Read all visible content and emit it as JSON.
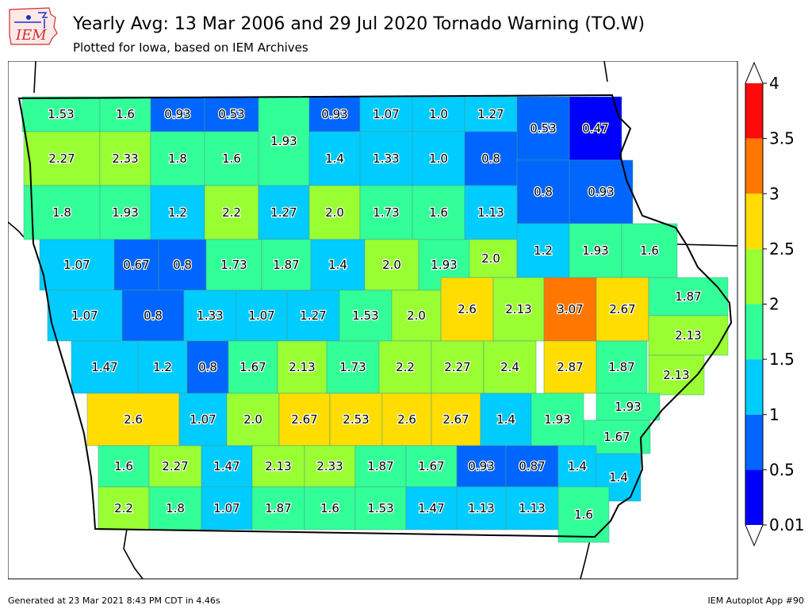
{
  "header": {
    "title": "Yearly Avg: 13 Mar 2006 and 29 Jul 2020 Tornado Warning (TO.W)",
    "subtitle": "Plotted for Iowa, based on IEM Archives",
    "logo_text": "IEM"
  },
  "footer": {
    "generated": "Generated at 23 Mar 2021 8:43 PM CDT in 4.46s",
    "app": "IEM Autoplot App #90"
  },
  "colorbar": {
    "ticks": [
      "0.01",
      "0.5",
      "1",
      "1.5",
      "2",
      "2.5",
      "3",
      "3.5",
      "4"
    ],
    "bins": [
      {
        "min": 0.01,
        "max": 0.5,
        "color": "#0000ff"
      },
      {
        "min": 0.5,
        "max": 1.0,
        "color": "#0066ff"
      },
      {
        "min": 1.0,
        "max": 1.5,
        "color": "#00ccff"
      },
      {
        "min": 1.5,
        "max": 2.0,
        "color": "#33ff99"
      },
      {
        "min": 2.0,
        "max": 2.5,
        "color": "#99ff33"
      },
      {
        "min": 2.5,
        "max": 3.0,
        "color": "#ffdd00"
      },
      {
        "min": 3.0,
        "max": 3.5,
        "color": "#ff7700"
      },
      {
        "min": 3.5,
        "max": 4.0,
        "color": "#ff0a0a"
      }
    ]
  },
  "map": {
    "region": "Iowa",
    "counties": [
      {
        "value": "1.53"
      },
      {
        "value": "1.6"
      },
      {
        "value": "0.93"
      },
      {
        "value": "0.53"
      },
      {
        "value": "1.93"
      },
      {
        "value": "0.93"
      },
      {
        "value": "1.07"
      },
      {
        "value": "1.0"
      },
      {
        "value": "1.27"
      },
      {
        "value": "0.53"
      },
      {
        "value": "0.47"
      },
      {
        "value": "2.27"
      },
      {
        "value": "2.33"
      },
      {
        "value": "1.8"
      },
      {
        "value": "1.6"
      },
      {
        "value": "1.4"
      },
      {
        "value": "1.33"
      },
      {
        "value": "1.0"
      },
      {
        "value": "0.8"
      },
      {
        "value": "0.8"
      },
      {
        "value": "0.93"
      },
      {
        "value": "1.8"
      },
      {
        "value": "1.93"
      },
      {
        "value": "1.2"
      },
      {
        "value": "2.2"
      },
      {
        "value": "1.27"
      },
      {
        "value": "2.0"
      },
      {
        "value": "1.73"
      },
      {
        "value": "1.6"
      },
      {
        "value": "1.13"
      },
      {
        "value": "2.0"
      },
      {
        "value": "1.2"
      },
      {
        "value": "1.93"
      },
      {
        "value": "1.6"
      },
      {
        "value": "1.07"
      },
      {
        "value": "0.67"
      },
      {
        "value": "0.8"
      },
      {
        "value": "1.73"
      },
      {
        "value": "1.87"
      },
      {
        "value": "1.4"
      },
      {
        "value": "2.0"
      },
      {
        "value": "1.93"
      },
      {
        "value": "1.87"
      },
      {
        "value": "1.07"
      },
      {
        "value": "0.8"
      },
      {
        "value": "1.33"
      },
      {
        "value": "1.07"
      },
      {
        "value": "1.27"
      },
      {
        "value": "1.53"
      },
      {
        "value": "2.0"
      },
      {
        "value": "2.6"
      },
      {
        "value": "2.13"
      },
      {
        "value": "3.07"
      },
      {
        "value": "2.67"
      },
      {
        "value": "2.13"
      },
      {
        "value": "1.47"
      },
      {
        "value": "1.2"
      },
      {
        "value": "0.8"
      },
      {
        "value": "1.67"
      },
      {
        "value": "2.13"
      },
      {
        "value": "1.73"
      },
      {
        "value": "2.2"
      },
      {
        "value": "2.27"
      },
      {
        "value": "2.4"
      },
      {
        "value": "2.87"
      },
      {
        "value": "1.87"
      },
      {
        "value": "2.13"
      },
      {
        "value": "2.6"
      },
      {
        "value": "1.07"
      },
      {
        "value": "2.0"
      },
      {
        "value": "2.67"
      },
      {
        "value": "2.53"
      },
      {
        "value": "2.6"
      },
      {
        "value": "2.67"
      },
      {
        "value": "1.4"
      },
      {
        "value": "1.93"
      },
      {
        "value": "1.93"
      },
      {
        "value": "1.67"
      },
      {
        "value": "1.6"
      },
      {
        "value": "2.27"
      },
      {
        "value": "1.47"
      },
      {
        "value": "2.13"
      },
      {
        "value": "2.33"
      },
      {
        "value": "1.87"
      },
      {
        "value": "1.67"
      },
      {
        "value": "0.93"
      },
      {
        "value": "0.87"
      },
      {
        "value": "1.4"
      },
      {
        "value": "1.4"
      },
      {
        "value": "2.2"
      },
      {
        "value": "1.8"
      },
      {
        "value": "1.07"
      },
      {
        "value": "1.87"
      },
      {
        "value": "1.6"
      },
      {
        "value": "1.53"
      },
      {
        "value": "1.47"
      },
      {
        "value": "1.13"
      },
      {
        "value": "1.13"
      },
      {
        "value": "1.6"
      }
    ]
  }
}
